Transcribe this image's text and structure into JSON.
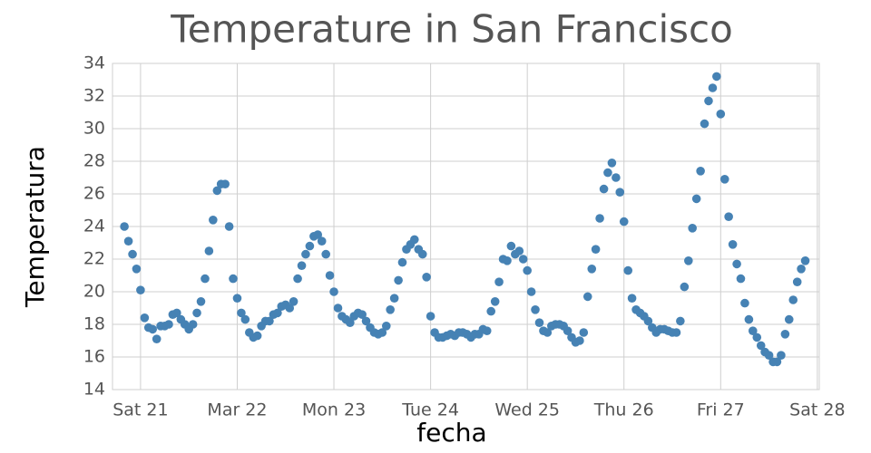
{
  "chart_data": {
    "type": "scatter",
    "title": "Temperature in San Francisco",
    "xlabel": "fecha",
    "ylabel": "Temperatura",
    "color": "#4682b4",
    "grid": true,
    "xlim": [
      20.71,
      28.02
    ],
    "ylim": [
      14,
      34
    ],
    "xticks": [
      {
        "value": 21,
        "label": "Sat 21"
      },
      {
        "value": 22,
        "label": "Mar 22"
      },
      {
        "value": 23,
        "label": "Mon 23"
      },
      {
        "value": 24,
        "label": "Tue 24"
      },
      {
        "value": 25,
        "label": "Wed 25"
      },
      {
        "value": 26,
        "label": "Thu 26"
      },
      {
        "value": 27,
        "label": "Fri 27"
      },
      {
        "value": 28,
        "label": "Sat 28"
      }
    ],
    "yticks": [
      14,
      16,
      18,
      20,
      22,
      24,
      26,
      28,
      30,
      32,
      34
    ],
    "x": [
      20.833,
      20.875,
      20.917,
      20.958,
      21,
      21.042,
      21.083,
      21.125,
      21.167,
      21.208,
      21.25,
      21.292,
      21.333,
      21.375,
      21.417,
      21.458,
      21.5,
      21.542,
      21.583,
      21.625,
      21.667,
      21.708,
      21.75,
      21.792,
      21.833,
      21.875,
      21.917,
      21.958,
      22,
      22.042,
      22.083,
      22.125,
      22.167,
      22.208,
      22.25,
      22.292,
      22.333,
      22.375,
      22.417,
      22.458,
      22.5,
      22.542,
      22.583,
      22.625,
      22.667,
      22.708,
      22.75,
      22.792,
      22.833,
      22.875,
      22.917,
      22.958,
      23,
      23.042,
      23.083,
      23.125,
      23.167,
      23.208,
      23.25,
      23.292,
      23.333,
      23.375,
      23.417,
      23.458,
      23.5,
      23.542,
      23.583,
      23.625,
      23.667,
      23.708,
      23.75,
      23.792,
      23.833,
      23.875,
      23.917,
      23.958,
      24,
      24.042,
      24.083,
      24.125,
      24.167,
      24.208,
      24.25,
      24.292,
      24.333,
      24.375,
      24.417,
      24.458,
      24.5,
      24.542,
      24.583,
      24.625,
      24.667,
      24.708,
      24.75,
      24.792,
      24.833,
      24.875,
      24.917,
      24.958,
      25,
      25.042,
      25.083,
      25.125,
      25.167,
      25.208,
      25.25,
      25.292,
      25.333,
      25.375,
      25.417,
      25.458,
      25.5,
      25.542,
      25.583,
      25.625,
      25.667,
      25.708,
      25.75,
      25.792,
      25.833,
      25.875,
      25.917,
      25.958,
      26,
      26.042,
      26.083,
      26.125,
      26.167,
      26.208,
      26.25,
      26.292,
      26.333,
      26.375,
      26.417,
      26.458,
      26.5,
      26.542,
      26.583,
      26.625,
      26.667,
      26.708,
      26.75,
      26.792,
      26.833,
      26.875,
      26.917,
      26.958,
      27,
      27.042,
      27.083,
      27.125,
      27.167,
      27.208,
      27.25,
      27.292,
      27.333,
      27.375,
      27.417,
      27.458,
      27.5,
      27.542,
      27.583,
      27.625,
      27.667,
      27.708,
      27.75,
      27.792,
      27.833,
      27.875
    ],
    "values": [
      24.0,
      23.1,
      22.3,
      21.4,
      20.1,
      18.4,
      17.8,
      17.7,
      17.1,
      17.9,
      17.9,
      18.0,
      18.6,
      18.7,
      18.3,
      18.0,
      17.7,
      18.0,
      18.7,
      19.4,
      20.8,
      22.5,
      24.4,
      26.2,
      26.6,
      26.6,
      24.0,
      20.8,
      19.6,
      18.7,
      18.3,
      17.5,
      17.2,
      17.3,
      17.9,
      18.2,
      18.2,
      18.6,
      18.7,
      19.1,
      19.2,
      19.0,
      19.4,
      20.8,
      21.6,
      22.3,
      22.8,
      23.4,
      23.5,
      23.1,
      22.3,
      21.0,
      20.0,
      19.0,
      18.5,
      18.3,
      18.1,
      18.5,
      18.7,
      18.6,
      18.2,
      17.8,
      17.5,
      17.4,
      17.5,
      17.9,
      18.9,
      19.6,
      20.7,
      21.8,
      22.6,
      22.9,
      23.2,
      22.6,
      22.3,
      20.9,
      18.5,
      17.5,
      17.2,
      17.2,
      17.3,
      17.4,
      17.3,
      17.5,
      17.5,
      17.4,
      17.2,
      17.4,
      17.4,
      17.7,
      17.6,
      18.8,
      19.4,
      20.6,
      22.0,
      21.9,
      22.8,
      22.3,
      22.5,
      22.0,
      21.3,
      20.0,
      18.9,
      18.1,
      17.6,
      17.5,
      17.9,
      18.0,
      18.0,
      17.9,
      17.6,
      17.2,
      16.9,
      17.0,
      17.5,
      19.7,
      21.4,
      22.6,
      24.5,
      26.3,
      27.3,
      27.9,
      27.0,
      26.1,
      24.3,
      21.3,
      19.6,
      18.9,
      18.7,
      18.5,
      18.2,
      17.8,
      17.5,
      17.7,
      17.7,
      17.6,
      17.5,
      17.5,
      18.2,
      20.3,
      21.9,
      23.9,
      25.7,
      27.4,
      30.3,
      31.7,
      32.5,
      33.2,
      30.9,
      26.9,
      24.6,
      22.9,
      21.7,
      20.8,
      19.3,
      18.3,
      17.6,
      17.2,
      16.7,
      16.3,
      16.1,
      15.7,
      15.7,
      16.1,
      17.4,
      18.3,
      19.5,
      20.6,
      21.4,
      21.9
    ]
  }
}
